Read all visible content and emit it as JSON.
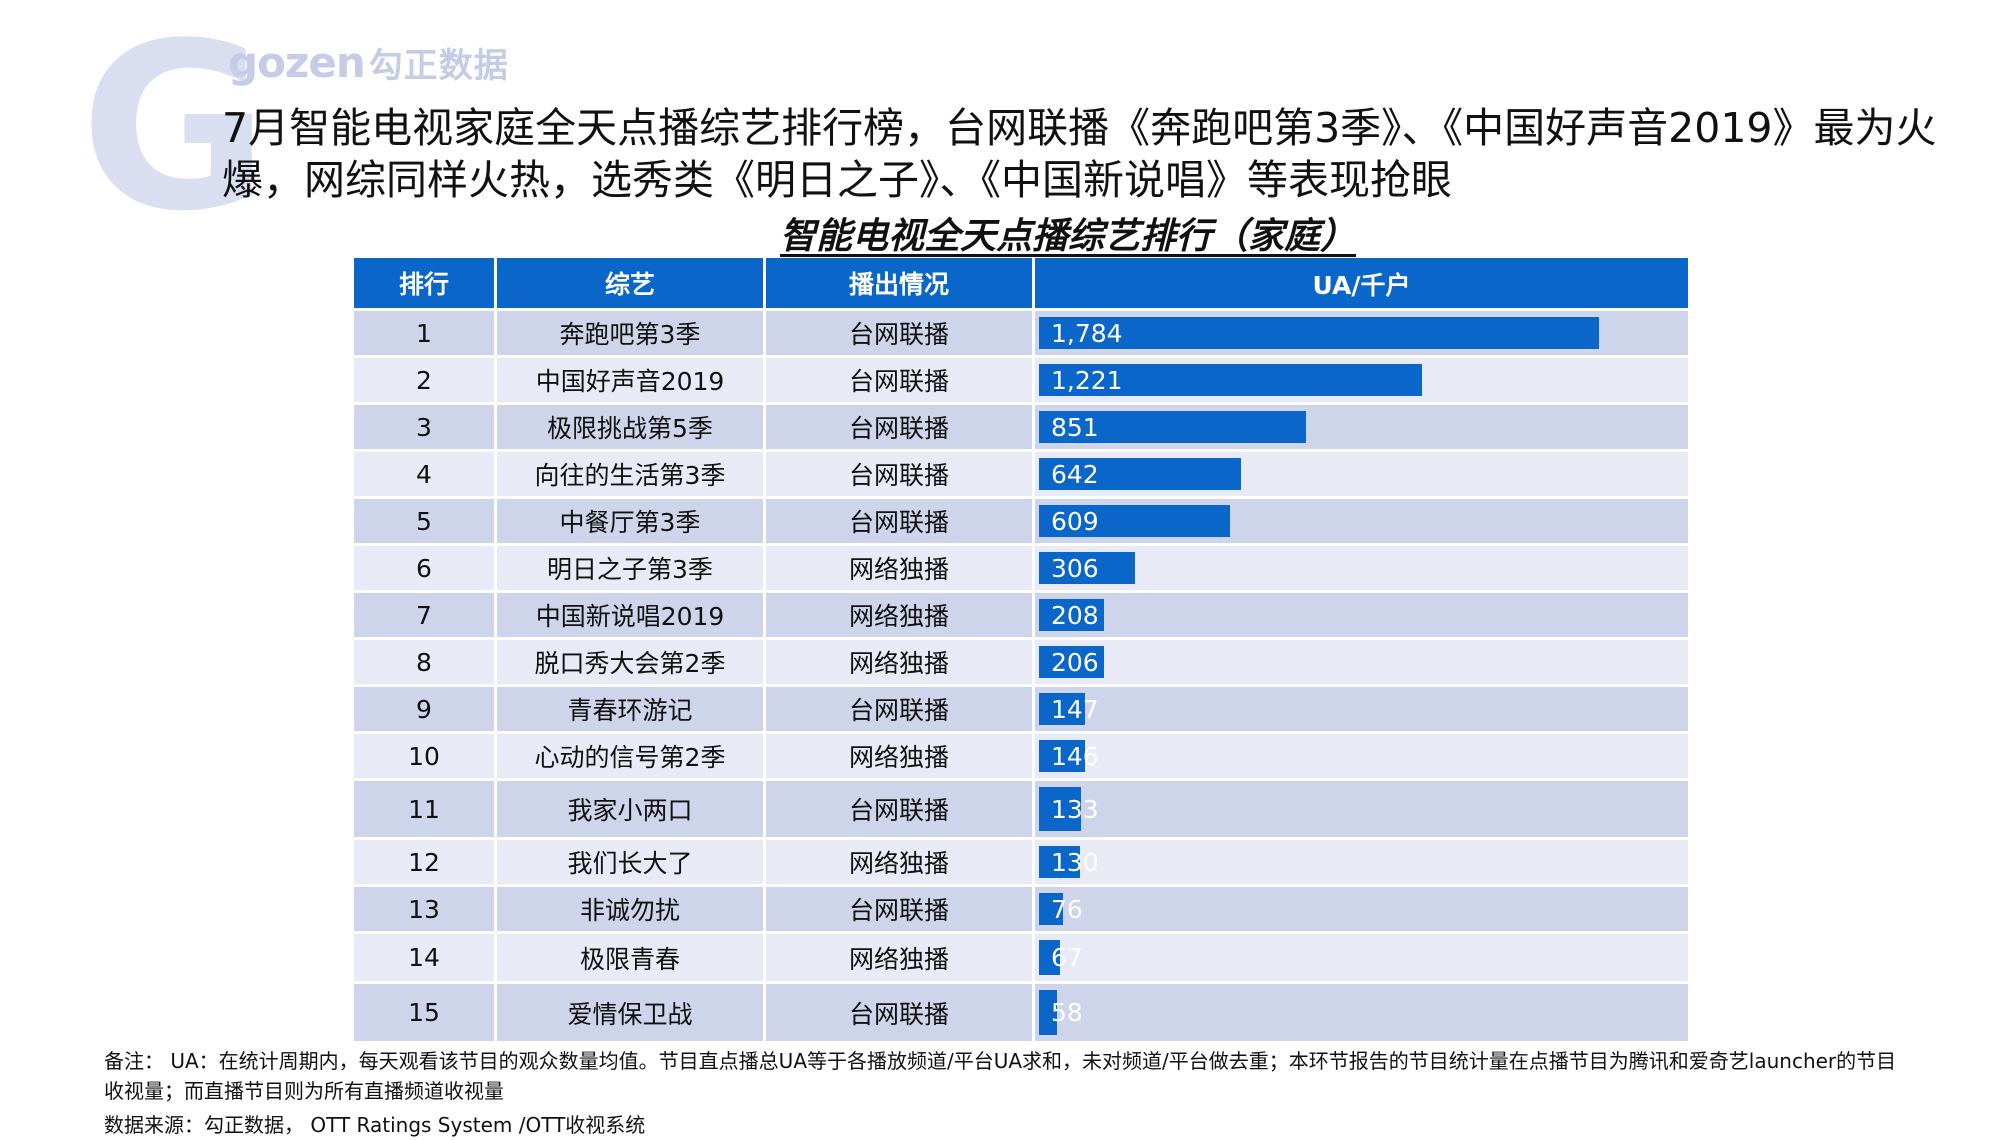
{
  "logo": {
    "latin": "gozen",
    "chinese": "勾正数据"
  },
  "headline": "7月智能电视家庭全天点播综艺排行榜，台网联播《奔跑吧第3季》、《中国好声音2019》最为火爆，网综同样火热，选秀类《明日之子》、《中国新说唱》等表现抢眼",
  "colors": {
    "header_bg": "#0a66c8",
    "bar": "#0a66c8",
    "row_odd": "#ced4ea",
    "row_even": "#e8ebf5",
    "watermark": "#d9def0"
  },
  "chart_data": {
    "type": "table",
    "title": "智能电视全天点播综艺排行（家庭）",
    "columns": [
      "排行",
      "综艺",
      "播出情况",
      "UA/千户"
    ],
    "rows": [
      {
        "rank": "1",
        "show": "奔跑吧第3季",
        "broadcast": "台网联播",
        "ua": 1784,
        "ua_label": "1,784"
      },
      {
        "rank": "2",
        "show": "中国好声音2019",
        "broadcast": "台网联播",
        "ua": 1221,
        "ua_label": "1,221"
      },
      {
        "rank": "3",
        "show": "极限挑战第5季",
        "broadcast": "台网联播",
        "ua": 851,
        "ua_label": "851"
      },
      {
        "rank": "4",
        "show": "向往的生活第3季",
        "broadcast": "台网联播",
        "ua": 642,
        "ua_label": "642"
      },
      {
        "rank": "5",
        "show": "中餐厅第3季",
        "broadcast": "台网联播",
        "ua": 609,
        "ua_label": "609"
      },
      {
        "rank": "6",
        "show": "明日之子第3季",
        "broadcast": "网络独播",
        "ua": 306,
        "ua_label": "306"
      },
      {
        "rank": "7",
        "show": "中国新说唱2019",
        "broadcast": "网络独播",
        "ua": 208,
        "ua_label": "208"
      },
      {
        "rank": "8",
        "show": "脱口秀大会第2季",
        "broadcast": "网络独播",
        "ua": 206,
        "ua_label": "206"
      },
      {
        "rank": "9",
        "show": "青春环游记",
        "broadcast": "台网联播",
        "ua": 147,
        "ua_label": "147"
      },
      {
        "rank": "10",
        "show": "心动的信号第2季",
        "broadcast": "网络独播",
        "ua": 146,
        "ua_label": "146"
      },
      {
        "rank": "11",
        "show": "我家小两口",
        "broadcast": "台网联播",
        "ua": 133,
        "ua_label": "133"
      },
      {
        "rank": "12",
        "show": "我们长大了",
        "broadcast": "网络独播",
        "ua": 130,
        "ua_label": "130"
      },
      {
        "rank": "13",
        "show": "非诚勿扰",
        "broadcast": "台网联播",
        "ua": 76,
        "ua_label": "76"
      },
      {
        "rank": "14",
        "show": "极限青春",
        "broadcast": "网络独播",
        "ua": 67,
        "ua_label": "67"
      },
      {
        "rank": "15",
        "show": "爱情保卫战",
        "broadcast": "台网联播",
        "ua": 58,
        "ua_label": "58"
      }
    ]
  },
  "notes": {
    "remark": "备注： UA：在统计周期内，每天观看该节目的观众数量均值。节目直点播总UA等于各播放频道/平台UA求和，未对频道/平台做去重；本环节报告的节目统计量在点播节目为腾讯和爱奇艺launcher的节目收视量；而直播节目则为所有直播频道收视量",
    "source": "数据来源：勾正数据， OTT Ratings System /OTT收视系统"
  }
}
